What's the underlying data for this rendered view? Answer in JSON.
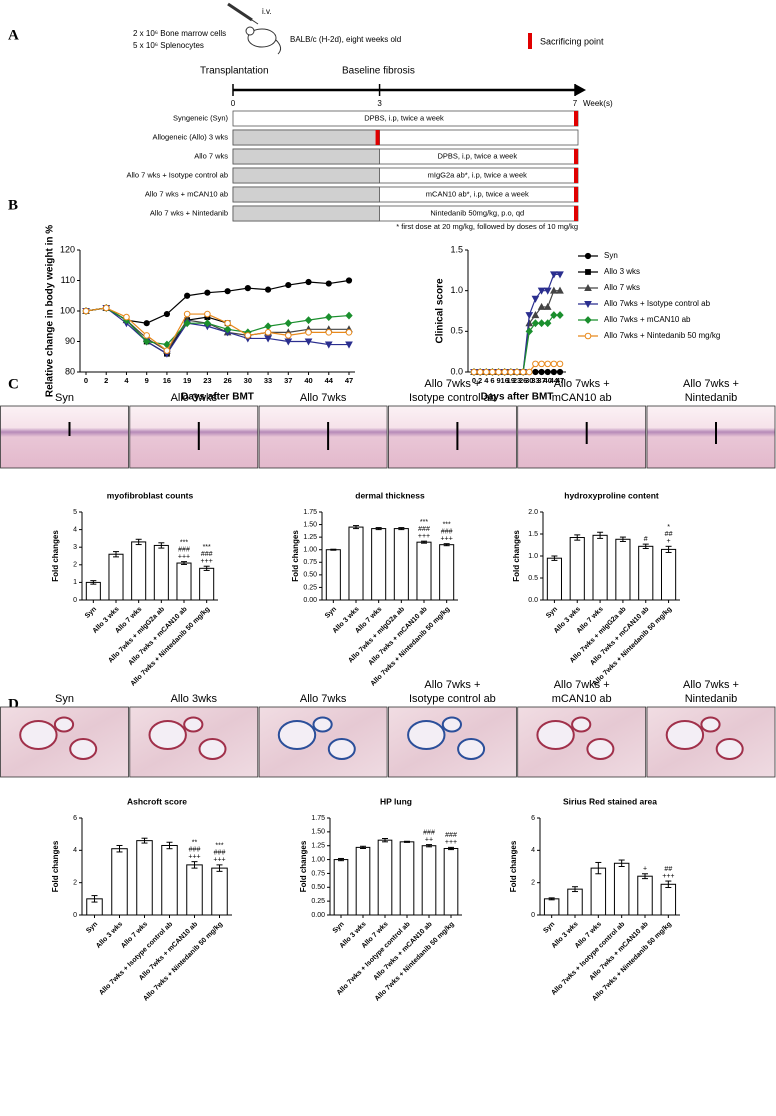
{
  "panel_labels": [
    "A",
    "B",
    "C",
    "D"
  ],
  "schema": {
    "iv": "i.v.",
    "cells": [
      "2 x 10⁶ Bone marrow cells",
      "5 x 10⁶ Splenocytes"
    ],
    "recipient": "BALB/c (H-2d), eight weeks old",
    "sacrifice_legend": "Sacrificing point",
    "phases": [
      "Transplantation",
      "Baseline fibrosis"
    ],
    "timeline_ticks": [
      0,
      3,
      7
    ],
    "timeline_unit": "Week(s)",
    "rows": [
      {
        "label": "Syngeneic (Syn)",
        "treatment": "DPBS, i.p, twice a week"
      },
      {
        "label": "Allogeneic (Allo) 3 wks",
        "treatment": null
      },
      {
        "label": "Allo 7 wks",
        "treatment": "DPBS, i.p, twice a week"
      },
      {
        "label": "Allo 7 wks + Isotype control ab",
        "treatment": "mIgG2a ab*, i.p, twice a week"
      },
      {
        "label": "Allo 7 wks + mCAN10 ab",
        "treatment": "mCAN10 ab*, i.p, twice a week"
      },
      {
        "label": "Allo 7 wks + Nintedanib",
        "treatment": "Nintedanib 50mg/kg, p.o, qd"
      }
    ],
    "footnote": "* first dose at 20 mg/kg, followed by doses of 10 mg/kg"
  },
  "histology_skin": [
    [
      "Syn"
    ],
    [
      "Allo 3wks"
    ],
    [
      "Allo 7wks"
    ],
    [
      "Allo 7wks +",
      "Isotype control ab"
    ],
    [
      "Allo 7wks +",
      "mCAN10 ab"
    ],
    [
      "Allo 7wks +",
      "Nintedanib"
    ]
  ],
  "histology_lung": [
    [
      "Syn"
    ],
    [
      "Allo 3wks"
    ],
    [
      "Allo 7wks"
    ],
    [
      "Allo 7wks +",
      "Isotype control ab"
    ],
    [
      "Allo 7wks +",
      "mCAN10 ab"
    ],
    [
      "Allo 7wks +",
      "Nintedanib"
    ]
  ],
  "chart_data": [
    {
      "type": "line",
      "y_label": "Relative change in body weight in %",
      "x_label": "Days after BMT",
      "categories": [
        "0",
        "2",
        "4",
        "9",
        "16",
        "19",
        "23",
        "26",
        "30",
        "33",
        "37",
        "40",
        "44",
        "47"
      ],
      "ylim": [
        80,
        120
      ],
      "yticks": [
        80,
        90,
        100,
        110,
        120
      ],
      "series": [
        {
          "color": "#000000",
          "marker": "circle",
          "values": [
            100,
            101,
            97,
            96,
            99,
            105,
            106,
            106.5,
            107.5,
            107,
            108.5,
            109.5,
            109,
            110
          ]
        },
        {
          "color": "#000000",
          "marker": "square",
          "values": [
            100,
            101,
            97,
            90,
            86,
            97,
            98,
            96,
            null,
            null,
            null,
            null,
            null,
            null
          ]
        },
        {
          "color": "#444444",
          "marker": "triangle",
          "values": [
            100,
            101,
            97,
            91,
            87,
            97,
            96,
            93,
            92,
            93,
            93,
            94,
            94,
            94
          ]
        },
        {
          "color": "#2b2f8f",
          "marker": "triangle-down",
          "values": [
            100,
            101,
            96,
            90,
            86,
            96,
            95,
            93,
            91,
            91,
            90,
            90,
            89,
            89
          ]
        },
        {
          "color": "#1b8f2e",
          "marker": "diamond",
          "values": [
            100,
            101,
            97,
            90,
            89,
            96,
            96,
            94,
            93,
            95,
            96,
            97,
            98,
            98.5
          ]
        },
        {
          "color": "#e8891c",
          "marker": "circle-open",
          "values": [
            100,
            101,
            98,
            92,
            87,
            99,
            99,
            96,
            92,
            93,
            92,
            93,
            93,
            93
          ]
        }
      ]
    },
    {
      "type": "line",
      "y_label": "Clinical score",
      "x_label": "Days after BMT",
      "legend": true,
      "categories": [
        "0",
        "2",
        "4",
        "6",
        "9",
        "16",
        "19",
        "23",
        "26",
        "30",
        "33",
        "37",
        "40",
        "44",
        "47"
      ],
      "ylim": [
        0,
        1.5
      ],
      "yticks": [
        {
          "value": 0,
          "label": "0.0"
        },
        0.5,
        {
          "value": 1,
          "label": "1.0"
        },
        1.5
      ],
      "series": [
        {
          "name": "Syn",
          "color": "#000000",
          "marker": "circle",
          "values": [
            0,
            0,
            0,
            0,
            0,
            0,
            0,
            0,
            0,
            0,
            0,
            0,
            0,
            0,
            0
          ]
        },
        {
          "name": "Allo 3 wks",
          "color": "#000000",
          "marker": "square",
          "values": [
            0,
            0,
            0,
            0,
            0,
            0,
            0,
            0,
            null,
            null,
            null,
            null,
            null,
            null,
            null
          ]
        },
        {
          "name": "Allo 7 wks",
          "color": "#444444",
          "marker": "triangle",
          "values": [
            0,
            0,
            0,
            0,
            0,
            0,
            0,
            0,
            0,
            0.6,
            0.7,
            0.8,
            0.8,
            1.0,
            1.0
          ]
        },
        {
          "name": "Allo 7wks + Isotype control ab",
          "color": "#2b2f8f",
          "marker": "triangle-down",
          "values": [
            0,
            0,
            0,
            0,
            0,
            0,
            0,
            0,
            0,
            0.7,
            0.9,
            1.0,
            1.0,
            1.2,
            1.2
          ]
        },
        {
          "name": "Allo 7wks + mCAN10 ab",
          "color": "#1b8f2e",
          "marker": "diamond",
          "values": [
            0,
            0,
            0,
            0,
            0,
            0,
            0,
            0,
            0,
            0.5,
            0.6,
            0.6,
            0.6,
            0.7,
            0.7
          ]
        },
        {
          "name": "Allo 7wks + Nintedanib 50 mg/kg",
          "color": "#e8891c",
          "marker": "circle-open",
          "values": [
            0,
            0,
            0,
            0,
            0,
            0,
            0,
            0,
            0,
            0,
            0.1,
            0.1,
            0.1,
            0.1,
            0.1
          ]
        }
      ]
    },
    {
      "type": "bar",
      "title": "myofibroblast counts",
      "y_label": "Fold changes",
      "categories": [
        "Syn",
        "Allo 3 wks",
        "Allo 7 wks",
        "Allo 7wks + mIgG2a ab",
        "Allo 7wks + mCAN10 ab",
        "Allo 7wks + Nintedanib 50 mg/kg"
      ],
      "values": [
        1.0,
        2.6,
        3.3,
        3.1,
        2.1,
        1.8
      ],
      "errors": [
        0.1,
        0.15,
        0.15,
        0.15,
        0.08,
        0.12
      ],
      "annotations": [
        null,
        null,
        null,
        null,
        [
          "***",
          "###",
          "+++"
        ],
        [
          "***",
          "###",
          "+++"
        ]
      ],
      "ylim": [
        0,
        5
      ],
      "yticks": [
        0,
        1,
        2,
        3,
        4,
        5
      ]
    },
    {
      "type": "bar",
      "title": "dermal thickness",
      "y_label": "Fold changes",
      "categories": [
        "Syn",
        "Allo 3 wks",
        "Allo 7 wks",
        "Allo 7wks + mIgG2a ab",
        "Allo 7wks + mCAN10 ab",
        "Allo 7wks + Nintedanib 50 mg/kg"
      ],
      "values": [
        1.0,
        1.45,
        1.42,
        1.42,
        1.15,
        1.1
      ],
      "errors": [
        0.01,
        0.03,
        0.02,
        0.02,
        0.02,
        0.02
      ],
      "annotations": [
        null,
        null,
        null,
        null,
        [
          "***",
          "###",
          "+++"
        ],
        [
          "***",
          "###",
          "+++"
        ]
      ],
      "ylim": [
        0,
        1.75
      ],
      "yticks": [
        {
          "value": 0,
          "label": "0.00"
        },
        0.25,
        {
          "value": 0.5,
          "label": "0.50"
        },
        0.75,
        {
          "value": 1,
          "label": "1.00"
        },
        1.25,
        {
          "value": 1.5,
          "label": "1.50"
        },
        1.75
      ]
    },
    {
      "type": "bar",
      "title": "hydroxyproline content",
      "y_label": "Fold changes",
      "categories": [
        "Syn",
        "Allo 3 wks",
        "Allo 7 wks",
        "Allo 7wks + mIgG2a ab",
        "Allo 7wks + mCAN10 ab",
        "Allo 7wks + Nintedanib 50 mg/kg"
      ],
      "values": [
        0.95,
        1.42,
        1.47,
        1.38,
        1.22,
        1.15
      ],
      "errors": [
        0.05,
        0.06,
        0.07,
        0.05,
        0.05,
        0.07
      ],
      "annotations": [
        null,
        null,
        null,
        null,
        [
          "#"
        ],
        [
          "*",
          "##",
          "+"
        ]
      ],
      "ylim": [
        0,
        2
      ],
      "yticks": [
        {
          "value": 0,
          "label": "0.0"
        },
        0.5,
        {
          "value": 1,
          "label": "1.0"
        },
        1.5,
        {
          "value": 2,
          "label": "2.0"
        }
      ]
    },
    {
      "type": "bar",
      "title": "Ashcroft score",
      "y_label": "Fold changes",
      "categories": [
        "Syn",
        "Allo 3 wks",
        "Allo 7 wks",
        "Allo 7wks + Isotype control ab",
        "Allo 7wks + mCAN10 ab",
        "Allo 7wks + Nintedanib 50 mg/kg"
      ],
      "values": [
        1.0,
        4.1,
        4.6,
        4.3,
        3.1,
        2.9
      ],
      "errors": [
        0.2,
        0.2,
        0.15,
        0.2,
        0.2,
        0.2
      ],
      "annotations": [
        null,
        null,
        null,
        null,
        [
          "**",
          "###",
          "+++"
        ],
        [
          "***",
          "###",
          "+++"
        ]
      ],
      "ylim": [
        0,
        6
      ],
      "yticks": [
        0,
        2,
        4,
        6
      ]
    },
    {
      "type": "bar",
      "title": "HP lung",
      "y_label": "Fold changes",
      "categories": [
        "Syn",
        "Allo 3 wks",
        "Allo 7 wks",
        "Allo 7wks + Isotype control ab",
        "Allo 7wks + mCAN10 ab",
        "Allo 7wks + Nintedanib 50 mg/kg"
      ],
      "values": [
        1.0,
        1.22,
        1.35,
        1.32,
        1.25,
        1.2
      ],
      "errors": [
        0.02,
        0.02,
        0.03,
        0.01,
        0.02,
        0.02
      ],
      "annotations": [
        null,
        null,
        null,
        null,
        [
          "###",
          "++"
        ],
        [
          "###",
          "+++"
        ]
      ],
      "ylim": [
        0,
        1.75
      ],
      "yticks": [
        {
          "value": 0,
          "label": "0.00"
        },
        0.25,
        {
          "value": 0.5,
          "label": "0.50"
        },
        0.75,
        {
          "value": 1,
          "label": "1.00"
        },
        1.25,
        {
          "value": 1.5,
          "label": "1.50"
        },
        1.75
      ]
    },
    {
      "type": "bar",
      "title": "Sirius Red stained area",
      "y_label": "Fold changes",
      "categories": [
        "Syn",
        "Allo 3 wks",
        "Allo 7 wks",
        "Allo 7wks + Isotype control ab",
        "Allo 7wks + mCAN10 ab",
        "Allo 7wks + Nintedanib 50 mg/kg"
      ],
      "values": [
        1.0,
        1.6,
        2.9,
        3.2,
        2.4,
        1.9
      ],
      "errors": [
        0.06,
        0.15,
        0.35,
        0.2,
        0.15,
        0.2
      ],
      "annotations": [
        null,
        null,
        null,
        null,
        [
          "+"
        ],
        [
          "##",
          "+++"
        ]
      ],
      "ylim": [
        0,
        6
      ],
      "yticks": [
        0,
        2,
        4,
        6
      ]
    }
  ]
}
